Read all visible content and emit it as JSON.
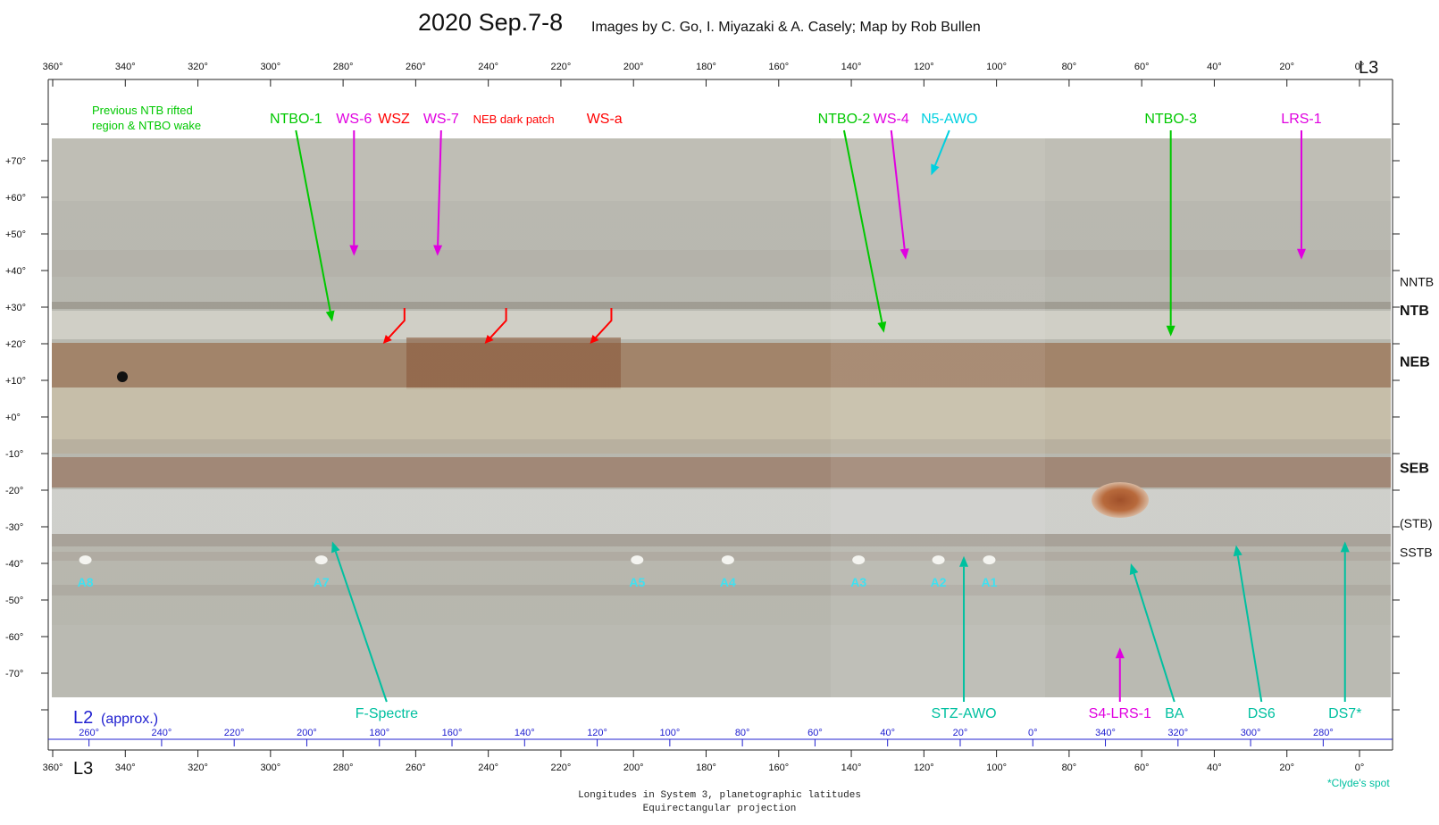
{
  "title": "2020 Sep.7-8",
  "subtitle": "Images by C. Go, I. Miyazaki & A. Casely;  Map by Rob Bullen",
  "axes": {
    "top_system": "L3",
    "bottom_system": "L3",
    "l2_label": "L2",
    "l2_note": "(approx.)",
    "l3_ticks": [
      "360°",
      "340°",
      "320°",
      "300°",
      "280°",
      "260°",
      "240°",
      "220°",
      "200°",
      "180°",
      "160°",
      "140°",
      "120°",
      "100°",
      "80°",
      "60°",
      "40°",
      "20°",
      "0°"
    ],
    "l3_values": [
      360,
      340,
      320,
      300,
      280,
      260,
      240,
      220,
      200,
      180,
      160,
      140,
      120,
      100,
      80,
      60,
      40,
      20,
      0
    ],
    "l2_ticks": [
      "260°",
      "240°",
      "220°",
      "200°",
      "180°",
      "160°",
      "140°",
      "120°",
      "100°",
      "80°",
      "60°",
      "40°",
      "20°",
      "0°",
      "340°",
      "320°",
      "300°",
      "280°"
    ],
    "l2_values_at_l3": [
      350,
      330,
      310,
      290,
      270,
      250,
      230,
      210,
      190,
      170,
      150,
      130,
      110,
      90,
      70,
      50,
      30,
      10
    ],
    "lat_ticks": [
      "+70°",
      "+60°",
      "+50°",
      "+40°",
      "+30°",
      "+20°",
      "+10°",
      "+0°",
      "-10°",
      "-20°",
      "-30°",
      "-40°",
      "-50°",
      "-60°",
      "-70°"
    ],
    "lat_values": [
      70,
      60,
      50,
      40,
      30,
      20,
      10,
      0,
      -10,
      -20,
      -30,
      -40,
      -50,
      -60,
      -70
    ],
    "lat_range": [
      -75,
      75
    ]
  },
  "belts": [
    {
      "label": "NNTB",
      "lat": 37,
      "bold": false
    },
    {
      "label": "NTB",
      "lat": 29,
      "bold": true
    },
    {
      "label": "NEB",
      "lat": 15,
      "bold": true
    },
    {
      "label": "SEB",
      "lat": -14,
      "bold": true
    },
    {
      "label": "(STB)",
      "lat": -29,
      "bold": false
    },
    {
      "label": "SSTB",
      "lat": -37,
      "bold": false
    }
  ],
  "features": [
    {
      "label": "NTBO-1",
      "color": "#00c800",
      "lon": 283,
      "lat": 26,
      "text_lon": 293,
      "text_lat": 79
    },
    {
      "label": "WS-6",
      "color": "#e000e0",
      "lon": 277,
      "lat": 44,
      "text_lon": 277,
      "text_lat": 79
    },
    {
      "label": "WSZ",
      "color": "#ff0000",
      "lon": 269,
      "lat": 20,
      "text_lon": 266,
      "text_lat": 78
    },
    {
      "label": "WS-7",
      "color": "#e000e0",
      "lon": 254,
      "lat": 44,
      "text_lon": 253,
      "text_lat": 79
    },
    {
      "label": "NEB dark patch",
      "color": "#ff0000",
      "lon": 241,
      "lat": 20,
      "text_lon": 233,
      "text_lat": 79
    },
    {
      "label": "WS-a",
      "color": "#ff0000",
      "lon": 212,
      "lat": 20,
      "text_lon": 208,
      "text_lat": 78
    },
    {
      "label": "NTBO-2",
      "color": "#00c800",
      "lon": 131,
      "lat": 23,
      "text_lon": 142,
      "text_lat": 79
    },
    {
      "label": "WS-4",
      "color": "#e000e0",
      "lon": 125,
      "lat": 43,
      "text_lon": 129,
      "text_lat": 79
    },
    {
      "label": "N5-AWO",
      "color": "#00d0e0",
      "lon": 118,
      "lat": 66,
      "text_lon": 113,
      "text_lat": 79
    },
    {
      "label": "NTBO-3",
      "color": "#00c800",
      "lon": 52,
      "lat": 22,
      "text_lon": 52,
      "text_lat": 79
    },
    {
      "label": "LRS-1",
      "color": "#e000e0",
      "lon": 16,
      "lat": 43,
      "text_lon": 16,
      "text_lat": 79
    },
    {
      "label": "F-Spectre",
      "color": "#00c0a0",
      "lon": 283,
      "lat": -34,
      "text_lon": 268,
      "text_lat": -79
    },
    {
      "label": "STZ-AWO",
      "color": "#00c0a0",
      "lon": 109,
      "lat": -38,
      "text_lon": 109,
      "text_lat": -79
    },
    {
      "label": "S4-LRS-1",
      "color": "#e000e0",
      "lon": 66,
      "lat": -63,
      "text_lon": 66,
      "text_lat": -79
    },
    {
      "label": "BA",
      "color": "#00c0a0",
      "lon": 63,
      "lat": -40,
      "text_lon": 51,
      "text_lat": -79
    },
    {
      "label": "DS6",
      "color": "#00c0a0",
      "lon": 34,
      "lat": -35,
      "text_lon": 27,
      "text_lat": -79
    },
    {
      "label": "DS7*",
      "color": "#00c0a0",
      "lon": 4,
      "lat": -34,
      "text_lon": 4,
      "text_lat": -79
    }
  ],
  "spots": [
    {
      "label": "A8",
      "lon": 351,
      "lat": -41
    },
    {
      "label": "A7",
      "lon": 286,
      "lat": -41
    },
    {
      "label": "A5",
      "lon": 199,
      "lat": -41
    },
    {
      "label": "A4",
      "lon": 174,
      "lat": -41
    },
    {
      "label": "A3",
      "lon": 138,
      "lat": -41
    },
    {
      "label": "A2",
      "lon": 116,
      "lat": -41
    },
    {
      "label": "A1",
      "lon": 102,
      "lat": -41
    }
  ],
  "note_top_left": [
    "Previous NTB rifted",
    "region & NTBO wake"
  ],
  "footer_line1": "Longitudes in System 3, planetographic latitudes",
  "footer_line2": "Equirectangular projection",
  "footnote": "*Clyde's spot",
  "colors": {
    "green": "#00c800",
    "magenta": "#e000e0",
    "red": "#ff0000",
    "cyan": "#00d0e0",
    "teal": "#00c0a0",
    "l2_blue": "#2020d0"
  }
}
